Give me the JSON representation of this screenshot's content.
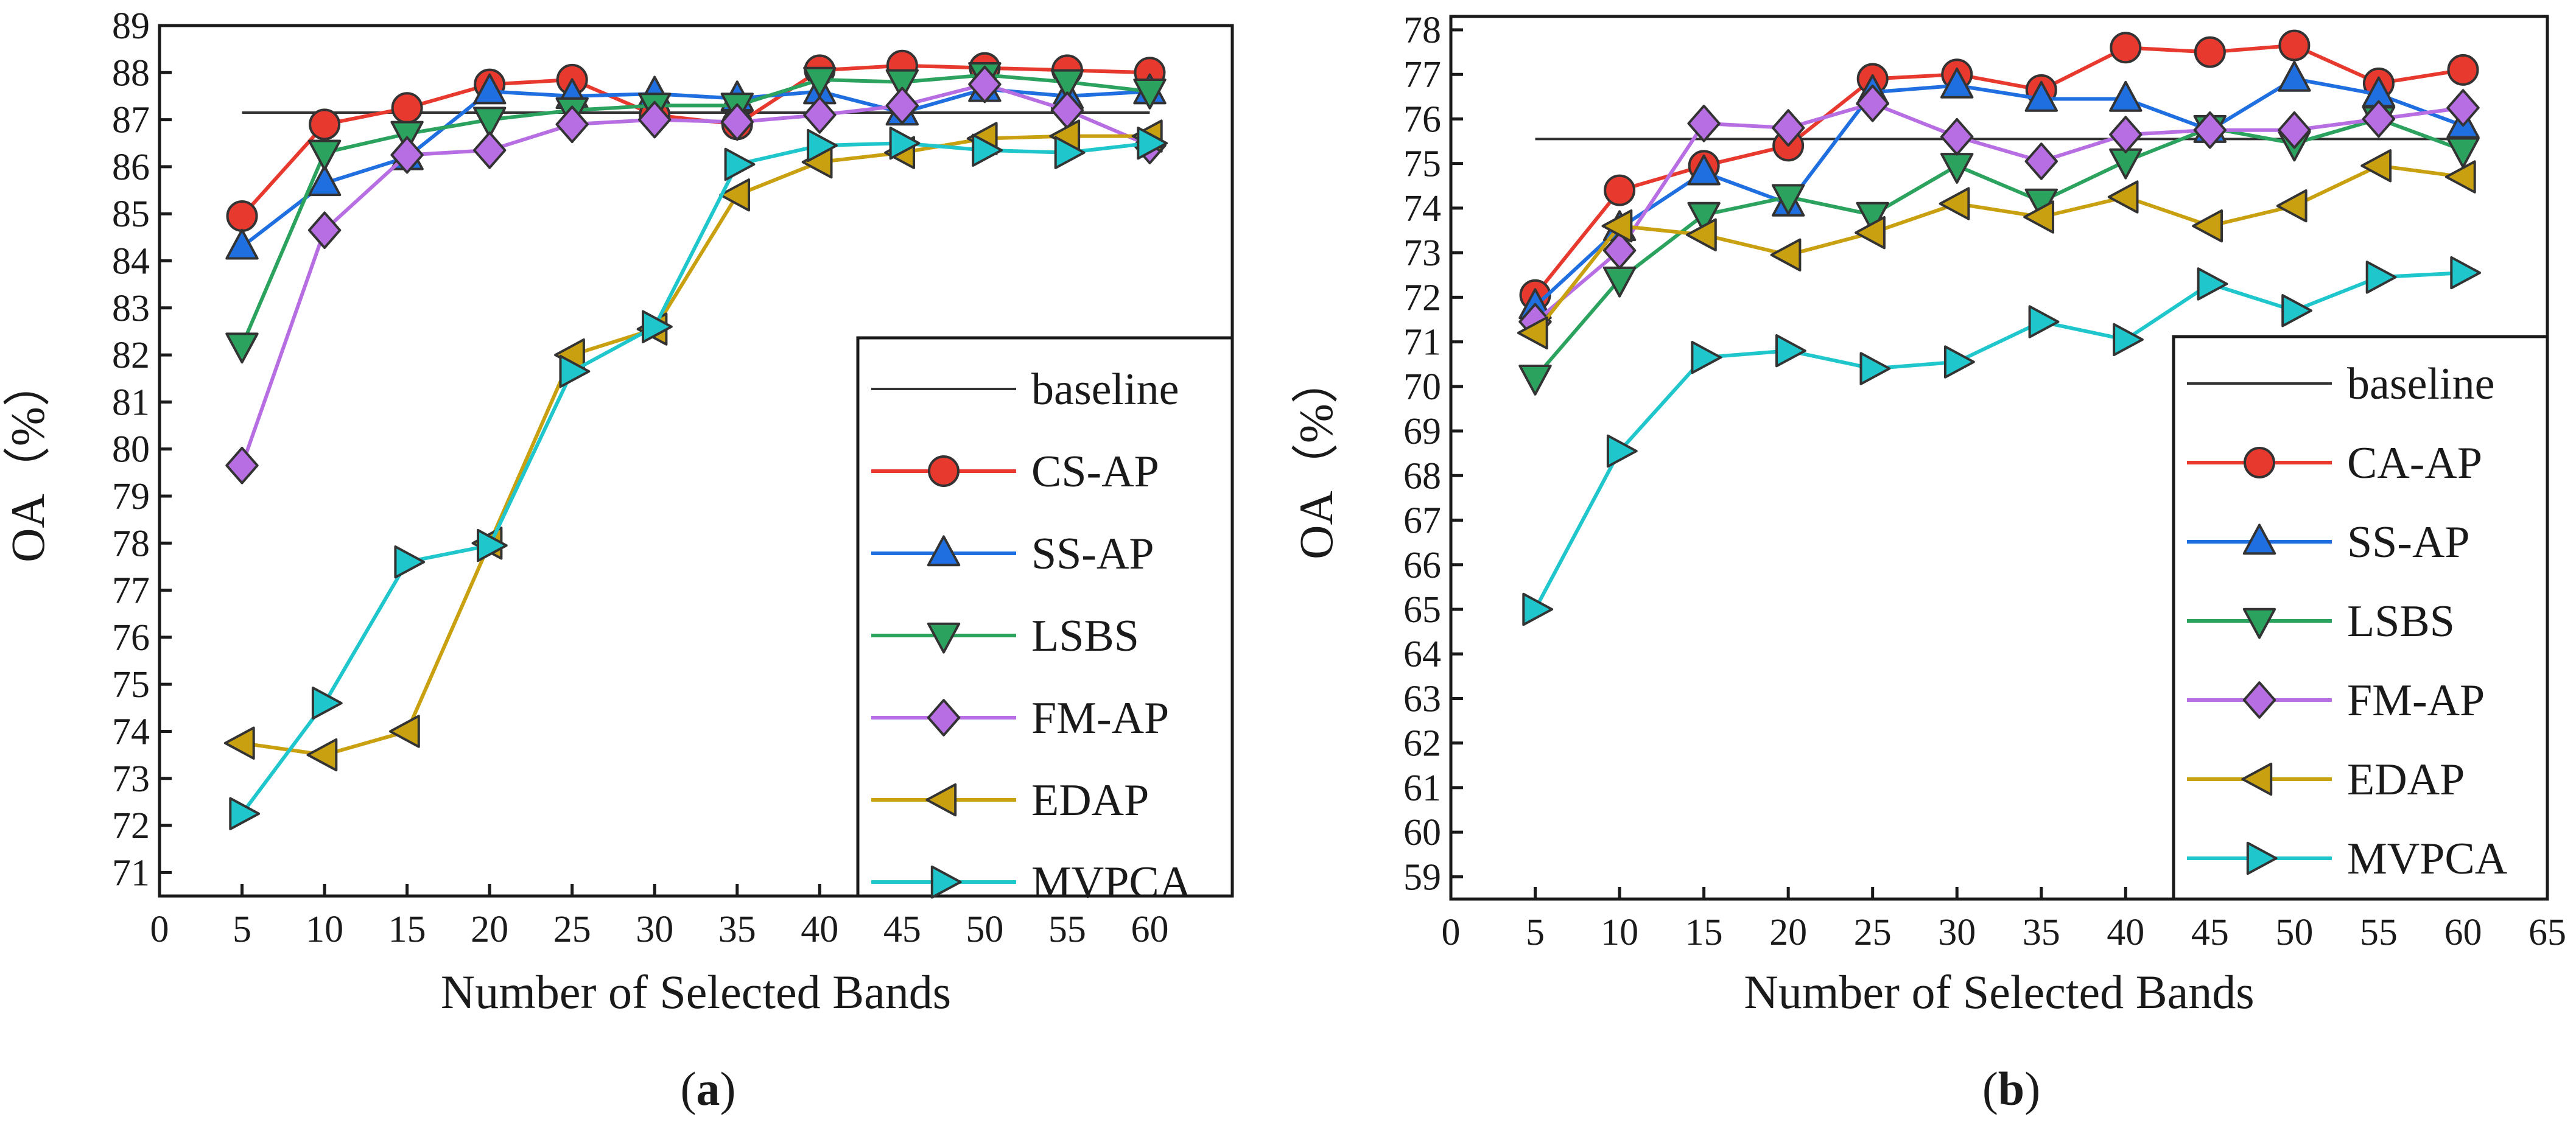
{
  "chart_data": [
    {
      "type": "line",
      "panel_label": "(a)",
      "panel_letter": "a",
      "xlabel": "Number of Selected Bands",
      "ylabel": "OA（%）",
      "xlim": [
        0,
        65
      ],
      "ylim": [
        70.5,
        89
      ],
      "x_ticks": [
        0,
        5,
        10,
        15,
        20,
        25,
        30,
        35,
        40,
        45,
        50,
        55,
        60
      ],
      "y_ticks": [
        71,
        72,
        73,
        74,
        75,
        76,
        77,
        78,
        79,
        80,
        81,
        82,
        83,
        84,
        85,
        86,
        87,
        88,
        89
      ],
      "legend_position": "bottom-right",
      "baseline": {
        "name": "baseline",
        "value": 87.15,
        "x_range": [
          5,
          60
        ],
        "color": "#333333"
      },
      "x": [
        5,
        10,
        15,
        20,
        25,
        30,
        35,
        40,
        45,
        50,
        55,
        60
      ],
      "series": [
        {
          "name": "CS-AP",
          "color": "#e8392f",
          "marker": "circle",
          "values": [
            84.95,
            86.9,
            87.25,
            87.75,
            87.85,
            87.1,
            86.9,
            88.05,
            88.15,
            88.1,
            88.05,
            88.0
          ]
        },
        {
          "name": "SS-AP",
          "color": "#1f6fe0",
          "marker": "triangle-up",
          "values": [
            84.3,
            85.65,
            86.2,
            87.6,
            87.5,
            87.55,
            87.45,
            87.6,
            87.15,
            87.65,
            87.5,
            87.6
          ]
        },
        {
          "name": "LSBS",
          "color": "#2ca25f",
          "marker": "triangle-down",
          "values": [
            82.2,
            86.3,
            86.7,
            87.0,
            87.2,
            87.3,
            87.3,
            87.85,
            87.8,
            87.95,
            87.8,
            87.6
          ]
        },
        {
          "name": "FM-AP",
          "color": "#b76ee3",
          "marker": "diamond",
          "values": [
            79.65,
            84.65,
            86.25,
            86.35,
            86.9,
            87.0,
            86.95,
            87.1,
            87.3,
            87.75,
            87.2,
            86.45
          ]
        },
        {
          "name": "EDAP",
          "color": "#c9a010",
          "marker": "triangle-left",
          "values": [
            73.75,
            73.5,
            74.0,
            78.0,
            82.0,
            82.55,
            85.4,
            86.1,
            86.3,
            86.6,
            86.65,
            86.65
          ]
        },
        {
          "name": "MVPCA",
          "color": "#1fc6cc",
          "marker": "triangle-right",
          "values": [
            72.25,
            74.6,
            77.6,
            77.95,
            81.65,
            82.6,
            86.05,
            86.45,
            86.5,
            86.35,
            86.3,
            86.5
          ]
        }
      ]
    },
    {
      "type": "line",
      "panel_label": "(b)",
      "panel_letter": "b",
      "xlabel": "Number of Selected Bands",
      "ylabel": "OA（%）",
      "xlim": [
        0,
        65
      ],
      "ylim": [
        58.5,
        78.3
      ],
      "x_ticks": [
        0,
        5,
        10,
        15,
        20,
        25,
        30,
        35,
        40,
        45,
        50,
        55,
        60,
        65
      ],
      "y_ticks": [
        59,
        60,
        61,
        62,
        63,
        64,
        65,
        66,
        67,
        68,
        69,
        70,
        71,
        72,
        73,
        74,
        75,
        76,
        77,
        78
      ],
      "legend_position": "bottom-right",
      "baseline": {
        "name": "baseline",
        "value": 75.55,
        "x_range": [
          5,
          60
        ],
        "color": "#333333"
      },
      "x": [
        5,
        10,
        15,
        20,
        25,
        30,
        35,
        40,
        45,
        50,
        55,
        60
      ],
      "series": [
        {
          "name": "CA-AP",
          "color": "#e8392f",
          "marker": "circle",
          "values": [
            72.05,
            74.4,
            74.95,
            75.4,
            76.9,
            77.0,
            76.65,
            77.6,
            77.5,
            77.65,
            76.8,
            77.1
          ]
        },
        {
          "name": "SS-AP",
          "color": "#1f6fe0",
          "marker": "triangle-up",
          "values": [
            71.8,
            73.55,
            74.8,
            74.1,
            76.6,
            76.75,
            76.45,
            76.45,
            75.75,
            76.9,
            76.55,
            75.85
          ]
        },
        {
          "name": "LSBS",
          "color": "#2ca25f",
          "marker": "triangle-down",
          "values": [
            70.2,
            72.4,
            73.85,
            74.25,
            73.85,
            74.95,
            74.15,
            75.05,
            75.8,
            75.45,
            76.0,
            75.3
          ]
        },
        {
          "name": "FM-AP",
          "color": "#b76ee3",
          "marker": "diamond",
          "values": [
            71.45,
            73.05,
            75.9,
            75.8,
            76.35,
            75.6,
            75.05,
            75.65,
            75.75,
            75.75,
            76.0,
            76.25
          ]
        },
        {
          "name": "EDAP",
          "color": "#c9a010",
          "marker": "triangle-left",
          "values": [
            71.2,
            73.6,
            73.4,
            72.95,
            73.45,
            74.1,
            73.8,
            74.25,
            73.6,
            74.05,
            74.95,
            74.7
          ]
        },
        {
          "name": "MVPCA",
          "color": "#1fc6cc",
          "marker": "triangle-right",
          "values": [
            65.0,
            68.55,
            70.65,
            70.8,
            70.4,
            70.55,
            71.45,
            71.05,
            72.3,
            71.7,
            72.45,
            72.55
          ]
        }
      ]
    }
  ]
}
